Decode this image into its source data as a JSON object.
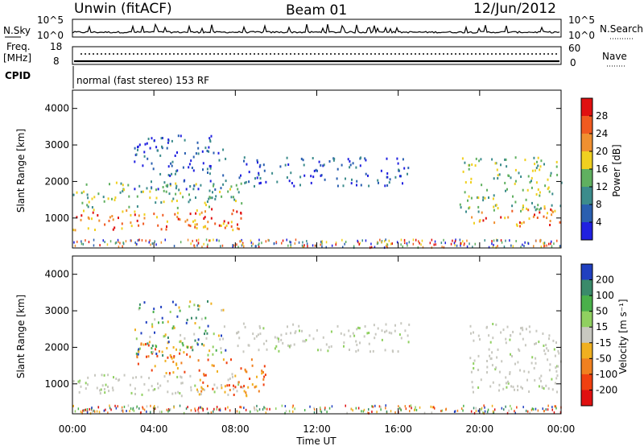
{
  "header": {
    "station": "Unwin (fitACF)",
    "beam": "Beam 01",
    "date": "12/Jun/2012"
  },
  "top_panels": {
    "nsky_label": "N.Sky",
    "nsky_ticks": [
      "10^5",
      "10^0"
    ],
    "nsearch_label": "N.Search",
    "nsearch_ticks": [
      "10^5",
      "10^0"
    ],
    "freq_label": "Freq.",
    "freq_unit": "[MHz]",
    "freq_ticks": [
      "18",
      "8"
    ],
    "nave_label": "Nave",
    "nave_ticks": [
      "60",
      "0"
    ],
    "cpid_label": "CPID",
    "cpid_text": "normal (fast stereo) 153 RF"
  },
  "chart_data": [
    {
      "type": "heatmap",
      "quantity": "Power",
      "ylabel": "Slant Range [km]",
      "colorbar_label": "Power [dB]",
      "ylim": [
        180,
        4500
      ],
      "yticks": [
        "1000",
        "2000",
        "3000",
        "4000"
      ],
      "xlim": [
        0,
        24
      ],
      "colorbar": {
        "ticks": [
          "4",
          "8",
          "12",
          "16",
          "20",
          "24",
          "28"
        ],
        "colors": [
          "#2020e0",
          "#2a5fb0",
          "#3c8c8c",
          "#60b060",
          "#f0d020",
          "#f09030",
          "#f05a20",
          "#e01010"
        ]
      },
      "regions": [
        {
          "t0": 0.0,
          "t1": 8.8,
          "r_lo": 700,
          "r_hi": 1300,
          "level": "high"
        },
        {
          "t0": 5.8,
          "t1": 8.2,
          "r_lo": 700,
          "r_hi": 1000,
          "level": "high"
        },
        {
          "t0": 0.0,
          "t1": 8.5,
          "r_lo": 1300,
          "r_hi": 2000,
          "level": "mid"
        },
        {
          "t0": 3.0,
          "t1": 7.5,
          "r_lo": 1800,
          "r_hi": 3300,
          "level": "low"
        },
        {
          "t0": 8.0,
          "t1": 16.5,
          "r_lo": 1900,
          "r_hi": 2700,
          "level": "low"
        },
        {
          "t0": 19.5,
          "t1": 24.0,
          "r_lo": 800,
          "r_hi": 1300,
          "level": "high"
        },
        {
          "t0": 19.0,
          "t1": 24.0,
          "r_lo": 1200,
          "r_hi": 2700,
          "level": "mid"
        }
      ]
    },
    {
      "type": "heatmap",
      "quantity": "Velocity",
      "ylabel": "Slant Range [km]",
      "colorbar_label": "Velocity [m s⁻¹]",
      "ylim": [
        180,
        4500
      ],
      "yticks": [
        "1000",
        "2000",
        "3000",
        "4000"
      ],
      "xlim": [
        0,
        24
      ],
      "colorbar": {
        "ticks": [
          "200",
          "100",
          "50",
          "15",
          "-15",
          "-50",
          "-100",
          "-200"
        ],
        "colors": [
          "#2040c0",
          "#3a8a6a",
          "#4ab04a",
          "#90d060",
          "#c8c8c0",
          "#f0b020",
          "#f08020",
          "#f04010",
          "#e01010"
        ]
      },
      "regions": [
        {
          "t0": 0.0,
          "t1": 8.8,
          "r_lo": 700,
          "r_hi": 1300,
          "level": "gray"
        },
        {
          "t0": 5.8,
          "t1": 9.5,
          "r_lo": 700,
          "r_hi": 1700,
          "level": "neg"
        },
        {
          "t0": 3.0,
          "t1": 5.8,
          "r_lo": 1300,
          "r_hi": 2200,
          "level": "neg"
        },
        {
          "t0": 3.0,
          "t1": 7.5,
          "r_lo": 1800,
          "r_hi": 3300,
          "level": "mixed"
        },
        {
          "t0": 8.0,
          "t1": 16.5,
          "r_lo": 1900,
          "r_hi": 2700,
          "level": "gray"
        },
        {
          "t0": 19.5,
          "t1": 24.0,
          "r_lo": 800,
          "r_hi": 2700,
          "level": "gray"
        }
      ]
    }
  ],
  "xaxis": {
    "ticks": [
      "00:00",
      "04:00",
      "08:00",
      "12:00",
      "16:00",
      "20:00",
      "00:00"
    ],
    "label": "Time UT"
  }
}
